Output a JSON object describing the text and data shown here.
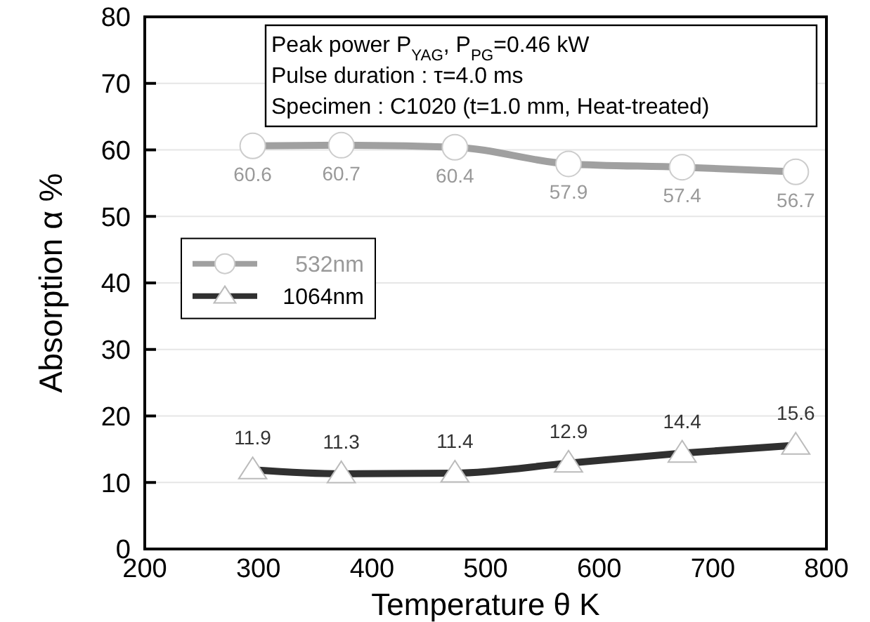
{
  "chart_data": {
    "type": "line",
    "xlabel": "Temperature θ K",
    "ylabel": "Absorption α %",
    "x": [
      295,
      373,
      473,
      573,
      673,
      773
    ],
    "series": [
      {
        "name": "532nm",
        "color": "#a0a0a0",
        "marker": "circle",
        "values": [
          60.6,
          60.7,
          60.4,
          57.9,
          57.4,
          56.7
        ]
      },
      {
        "name": "1064nm",
        "color": "#303030",
        "marker": "triangle",
        "values": [
          11.9,
          11.3,
          11.4,
          12.9,
          14.4,
          15.6
        ]
      }
    ],
    "xlim": [
      200,
      800
    ],
    "xticks": [
      200,
      300,
      400,
      500,
      600,
      700,
      800
    ],
    "ylim": [
      0,
      80
    ],
    "yticks": [
      0,
      10,
      20,
      30,
      40,
      50,
      60,
      70,
      80
    ],
    "grid": "y",
    "legend": "left",
    "data_labels": true,
    "annotations": [
      "Peak power P$_{YAG}$, P$_{PG}$=0.46 kW",
      "Pulse duration : τ=4.0 ms",
      "Specimen : C1020 (t=1.0 mm, Heat-treated)"
    ]
  }
}
